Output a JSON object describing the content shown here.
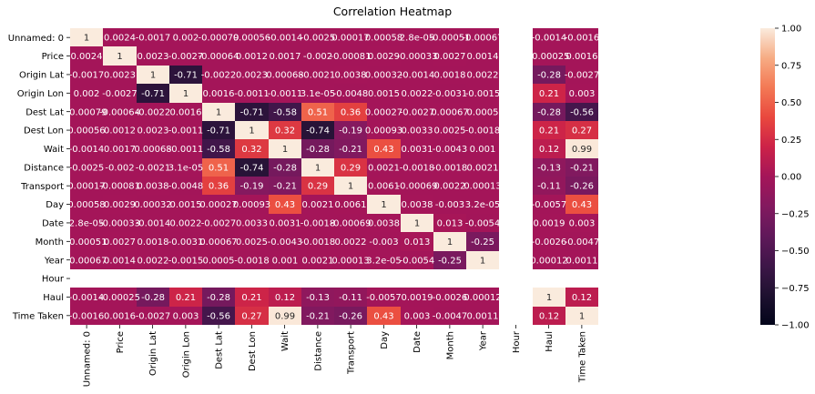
{
  "chart_data": {
    "type": "heatmap",
    "title": "Correlation Heatmap",
    "labels": [
      "Unnamed: 0",
      "Price",
      "Origin Lat",
      "Origin Lon",
      "Dest Lat",
      "Dest Lon",
      "Wait",
      "Distance",
      "Transport",
      "Day",
      "Date",
      "Month",
      "Year",
      "Hour",
      "Haul",
      "Time Taken"
    ],
    "values": [
      [
        "1",
        "0.0024",
        "-0.0017",
        "0.002",
        "-0.00079",
        "0.00056",
        "-0.0014",
        "-0.0025",
        "0.00017",
        "0.00058",
        "2.8e-05",
        "-0.00051",
        "-0.00067",
        null,
        "-0.0014",
        "-0.0016"
      ],
      [
        "0.0024",
        "1",
        "0.0023",
        "-0.0027",
        "-0.00064",
        "0.0012",
        "0.0017",
        "-0.002",
        "-0.00081",
        "0.0029",
        "-0.00033",
        "0.0027",
        "0.0014",
        null,
        "-0.00025",
        "0.0016"
      ],
      [
        "-0.0017",
        "0.0023",
        "1",
        "-0.71",
        "-0.0022",
        "0.0023",
        "0.00068",
        "-0.0021",
        "0.0038",
        "0.00032",
        "-0.0014",
        "0.0018",
        "0.0022",
        null,
        "-0.28",
        "-0.0027"
      ],
      [
        "0.002",
        "-0.0027",
        "-0.71",
        "1",
        "0.0016",
        "-0.0011",
        "-0.0011",
        "3.1e-05",
        "-0.0048",
        "0.0015",
        "0.0022",
        "-0.0031",
        "-0.0015",
        null,
        "0.21",
        "0.003"
      ],
      [
        "-0.00079",
        "-0.00064",
        "-0.0022",
        "0.0016",
        "1",
        "-0.71",
        "-0.58",
        "0.51",
        "0.36",
        "0.00027",
        "-0.0027",
        "0.00067",
        "0.0005",
        null,
        "-0.28",
        "-0.56"
      ],
      [
        "0.00056",
        "0.0012",
        "0.0023",
        "-0.0011",
        "-0.71",
        "1",
        "0.32",
        "-0.74",
        "-0.19",
        "0.00093",
        "0.0033",
        "0.0025",
        "-0.0018",
        null,
        "0.21",
        "0.27"
      ],
      [
        "-0.0014",
        "0.0017",
        "0.00068",
        "-0.0011",
        "-0.58",
        "0.32",
        "1",
        "-0.28",
        "-0.21",
        "0.43",
        "0.0031",
        "-0.0043",
        "0.001",
        null,
        "0.12",
        "0.99"
      ],
      [
        "-0.0025",
        "-0.002",
        "-0.0021",
        "3.1e-05",
        "0.51",
        "-0.74",
        "-0.28",
        "1",
        "0.29",
        "0.0021",
        "-0.0018",
        "-0.0018",
        "0.0021",
        null,
        "-0.13",
        "-0.21"
      ],
      [
        "0.00017",
        "-0.00081",
        "0.0038",
        "-0.0048",
        "0.36",
        "-0.19",
        "-0.21",
        "0.29",
        "1",
        "0.0061",
        "-0.00069",
        "0.0022",
        "0.00013",
        null,
        "-0.11",
        "-0.26"
      ],
      [
        "0.00058",
        "0.0029",
        "0.00032",
        "0.0015",
        "0.00027",
        "0.00093",
        "0.43",
        "0.0021",
        "0.0061",
        "1",
        "0.0038",
        "-0.003",
        "3.2e-05",
        null,
        "-0.0057",
        "0.43"
      ],
      [
        "2.8e-05",
        "-0.00033",
        "-0.0014",
        "0.0022",
        "-0.0027",
        "0.0033",
        "0.0031",
        "-0.0018",
        "-0.00069",
        "0.0038",
        "1",
        "0.013",
        "-0.0054",
        null,
        "0.0019",
        "0.003"
      ],
      [
        "-0.00051",
        "0.0027",
        "0.0018",
        "-0.0031",
        "0.00067",
        "0.0025",
        "-0.0043",
        "-0.0018",
        "0.0022",
        "-0.003",
        "0.013",
        "1",
        "-0.25",
        null,
        "-0.0026",
        "-0.0047"
      ],
      [
        "-0.00067",
        "0.0014",
        "0.0022",
        "-0.0015",
        "0.0005",
        "-0.0018",
        "0.001",
        "0.0021",
        "0.00013",
        "3.2e-05",
        "-0.0054",
        "-0.25",
        "1",
        null,
        "0.00012",
        "0.0011"
      ],
      [
        null,
        null,
        null,
        null,
        null,
        null,
        null,
        null,
        null,
        null,
        null,
        null,
        null,
        null,
        null,
        null
      ],
      [
        "-0.0014",
        "-0.00025",
        "-0.28",
        "0.21",
        "-0.28",
        "0.21",
        "0.12",
        "-0.13",
        "-0.11",
        "-0.0057",
        "0.0019",
        "-0.0026",
        "0.00012",
        null,
        "1",
        "0.12"
      ],
      [
        "-0.0016",
        "0.0016",
        "-0.0027",
        "0.003",
        "-0.56",
        "0.27",
        "0.99",
        "-0.21",
        "-0.26",
        "0.43",
        "0.003",
        "-0.0047",
        "0.0011",
        null,
        "0.12",
        "1"
      ]
    ],
    "colorbar": {
      "min": -1.0,
      "max": 1.0,
      "ticks": [
        "1.00",
        "0.75",
        "0.50",
        "0.25",
        "0.00",
        "−0.25",
        "−0.50",
        "−0.75",
        "−1.00"
      ],
      "tick_values": [
        1.0,
        0.75,
        0.5,
        0.25,
        0.0,
        -0.25,
        -0.5,
        -0.75,
        -1.0
      ]
    },
    "colormap": "rocket",
    "colorbar_position": "right"
  }
}
